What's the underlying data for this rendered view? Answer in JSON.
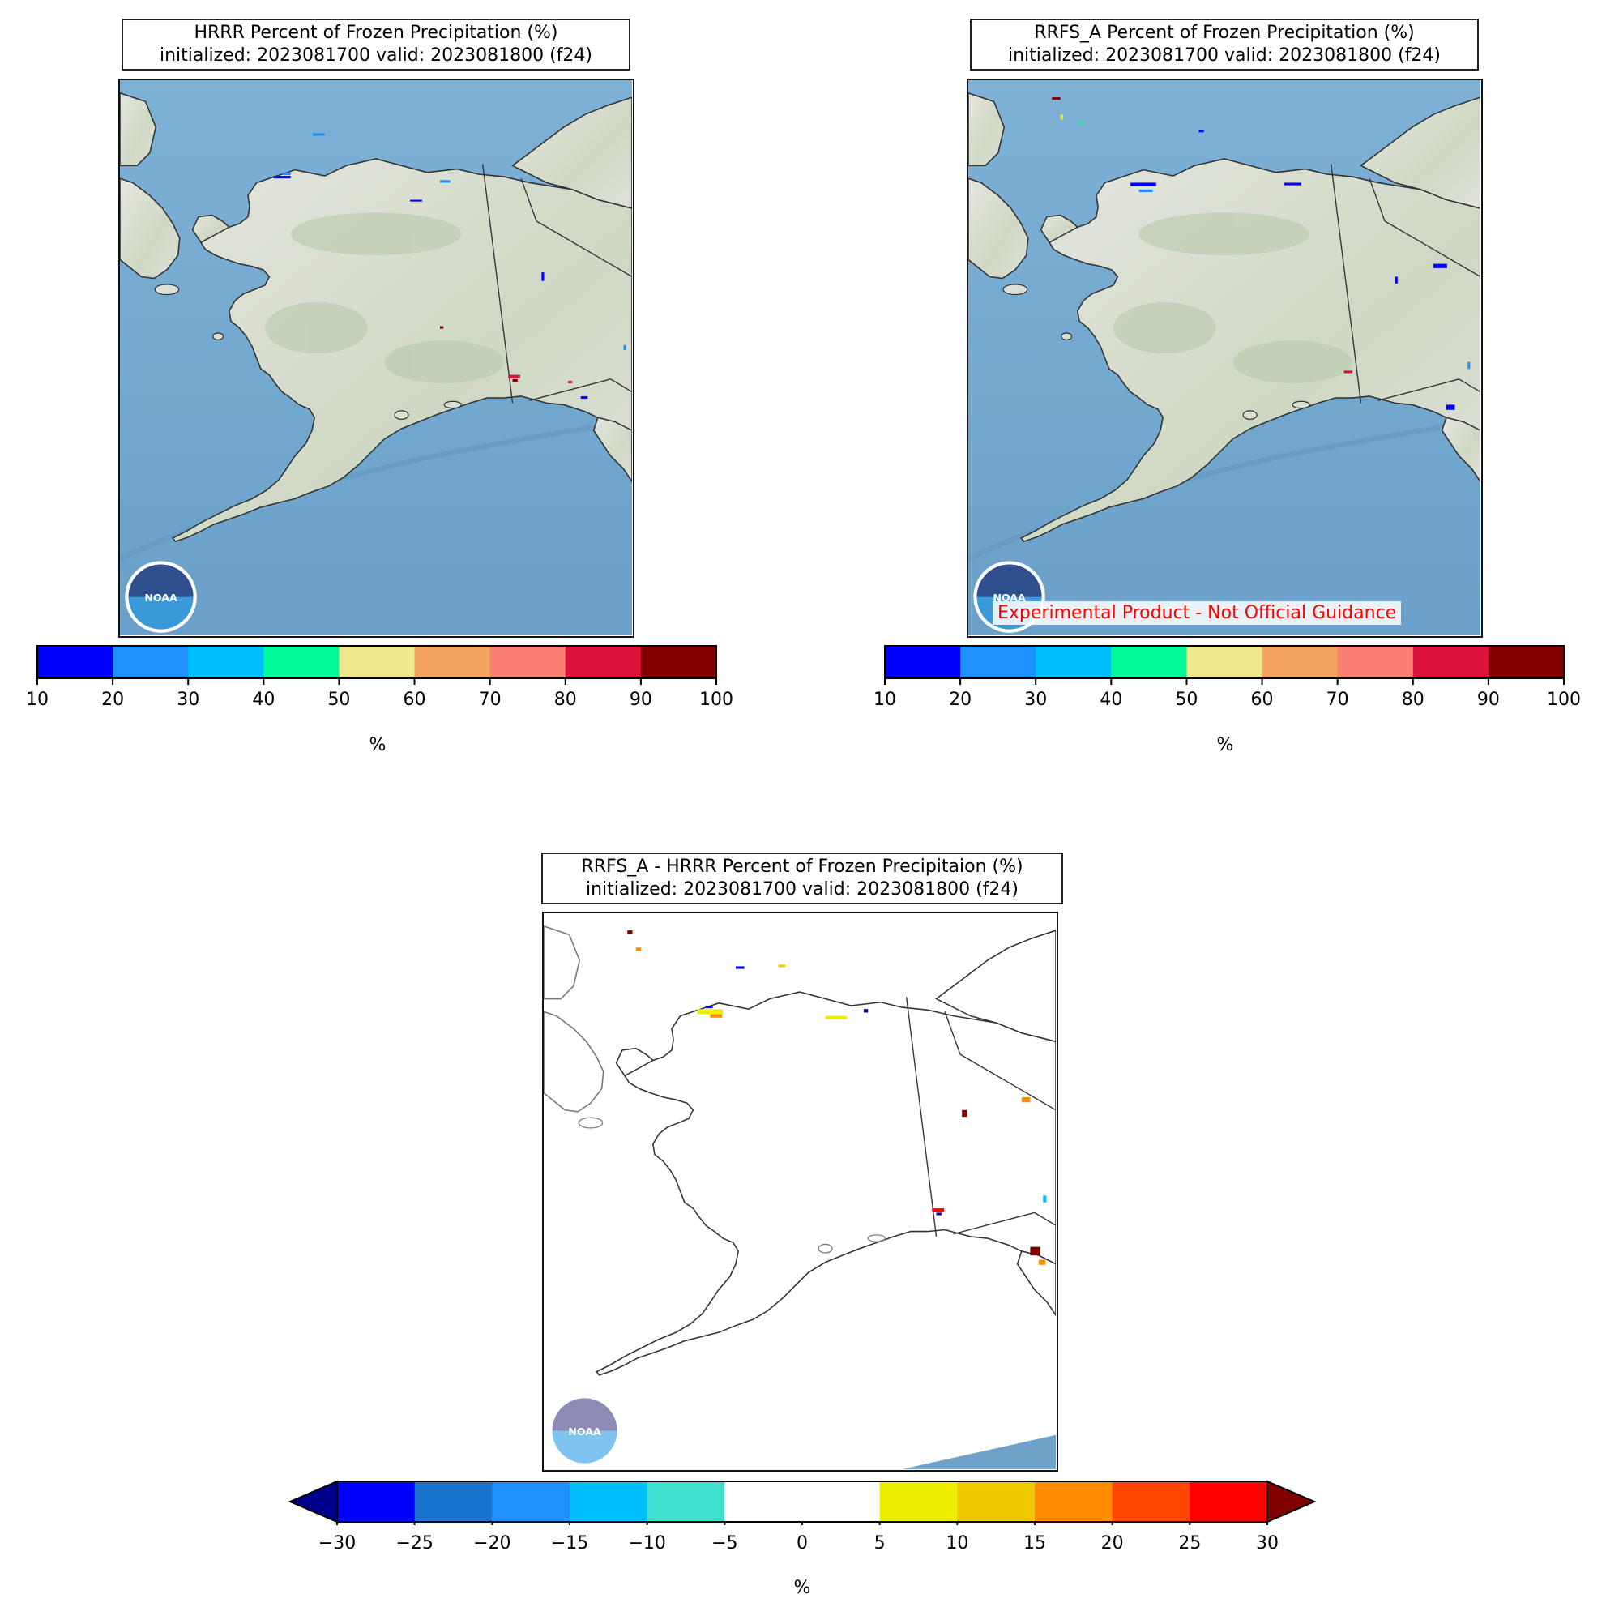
{
  "panels": [
    {
      "id": "hrrr",
      "title_line1": "HRRR Percent of Frozen Precipitation (%)",
      "title_line2": "initialized: 2023081700 valid: 2023081800 (f24)",
      "background": "shaded-relief",
      "colorbar": {
        "ticks": [
          "10",
          "20",
          "30",
          "40",
          "50",
          "60",
          "70",
          "80",
          "90",
          "100"
        ],
        "colors": [
          "#0000ff",
          "#1e90ff",
          "#00bfff",
          "#00fa9a",
          "#f0e68c",
          "#f4a460",
          "#fa8072",
          "#dc143c",
          "#800000"
        ],
        "label": "%"
      }
    },
    {
      "id": "rrfs_a",
      "title_line1": "RRFS_A Percent of Frozen Precipitation (%)",
      "title_line2": "initialized: 2023081700 valid: 2023081800 (f24)",
      "background": "shaded-relief",
      "disclaimer": "Experimental Product - Not Official Guidance",
      "colorbar": {
        "ticks": [
          "10",
          "20",
          "30",
          "40",
          "50",
          "60",
          "70",
          "80",
          "90",
          "100"
        ],
        "colors": [
          "#0000ff",
          "#1e90ff",
          "#00bfff",
          "#00fa9a",
          "#f0e68c",
          "#f4a460",
          "#fa8072",
          "#dc143c",
          "#800000"
        ],
        "label": "%"
      }
    },
    {
      "id": "diff",
      "title_line1": "RRFS_A - HRRR Percent of Frozen Precipitaion (%)",
      "title_line2": "initialized: 2023081700 valid: 2023081800 (f24)",
      "background": "white",
      "colorbar": {
        "ticks": [
          "−30",
          "−25",
          "−20",
          "−15",
          "−10",
          "−5",
          "0",
          "5",
          "10",
          "15",
          "20",
          "25",
          "30"
        ],
        "colors": [
          "#0000ff",
          "#1874cd",
          "#1e90ff",
          "#00bfff",
          "#40e0d0",
          "#ffffff",
          "#ffffff",
          "#eeee00",
          "#eec900",
          "#ff8c00",
          "#ff4500",
          "#ff0000"
        ],
        "under_color": "#00008b",
        "over_color": "#800000",
        "label": "%"
      }
    }
  ],
  "logo": {
    "name": "noaa-logo",
    "text": "NOAA"
  }
}
